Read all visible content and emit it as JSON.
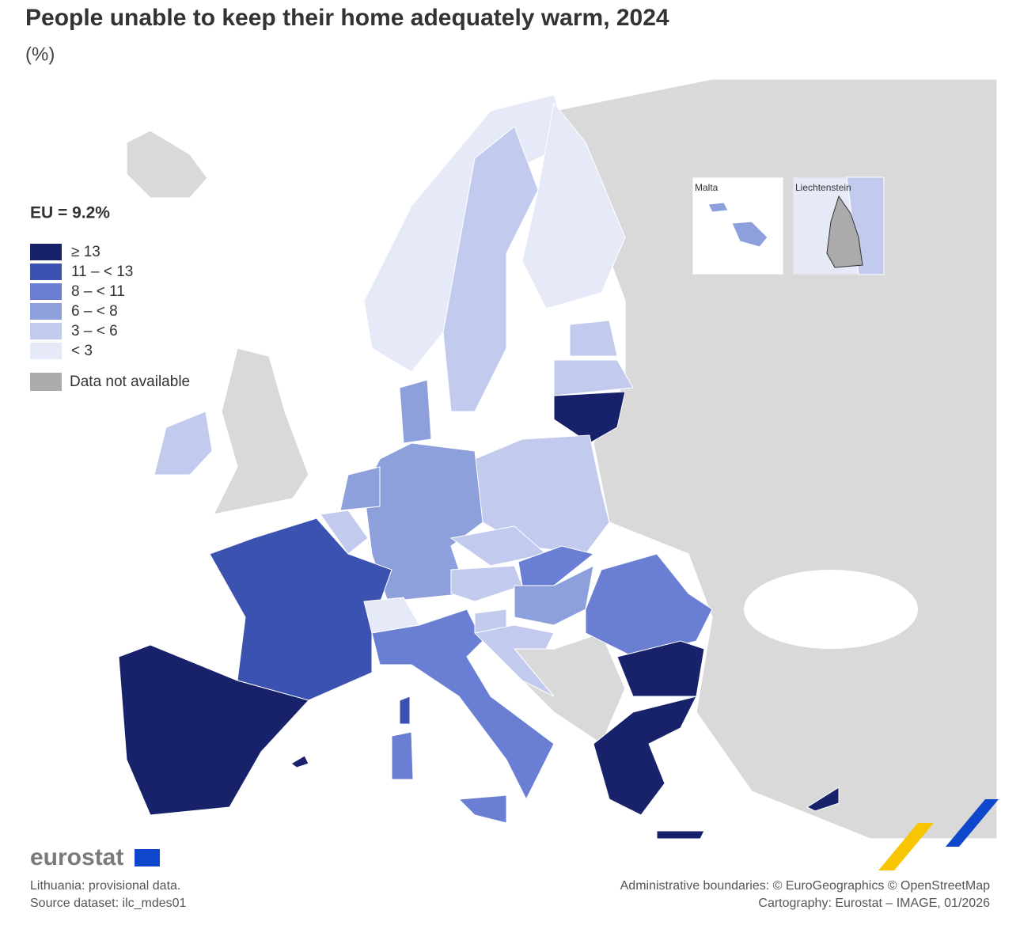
{
  "title": "People unable to keep their home adequately warm, 2024",
  "subtitle": "(%)",
  "legend": {
    "title": "EU = 9.2%",
    "items": [
      {
        "label": "≥ 13",
        "color": "#17226b"
      },
      {
        "label": "11 – < 13",
        "color": "#3b52b0"
      },
      {
        "label": "8 – < 11",
        "color": "#6a7fd4"
      },
      {
        "label": "6 – < 8",
        "color": "#8ea0dc"
      },
      {
        "label": "3 – < 6",
        "color": "#c2caed"
      },
      {
        "label": "< 3",
        "color": "#e6e9f7"
      }
    ],
    "not_available": {
      "label": "Data not available",
      "color": "#ababab"
    }
  },
  "insets": [
    {
      "label": "Malta"
    },
    {
      "label": "Liechtenstein"
    }
  ],
  "logo": "eurostat",
  "notes": [
    "Lithuania: provisional data.",
    "Source dataset: ilc_mdes01"
  ],
  "credits": [
    "Administrative boundaries: © EuroGeographics © OpenStreetMap",
    "Cartography: Eurostat – IMAGE, 01/2026"
  ]
}
